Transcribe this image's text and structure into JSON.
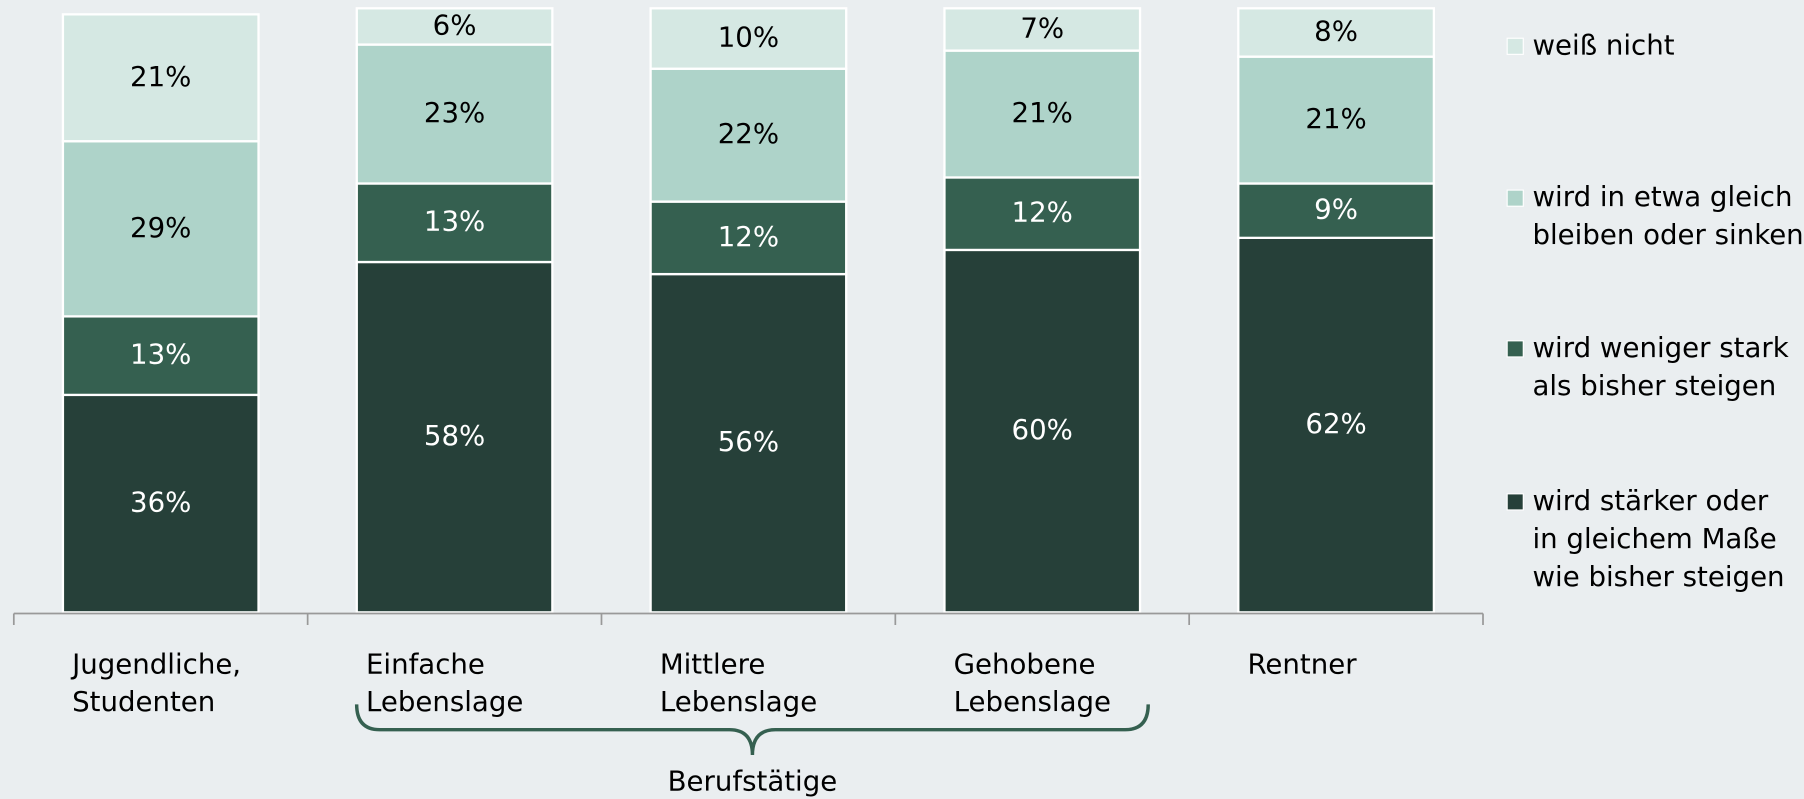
{
  "chart_data": {
    "type": "stacked_bar",
    "categories": [
      "Jugendliche, Studenten",
      "Einfache Lebenslage",
      "Mittlere Lebenslage",
      "Gehobene Lebenslage",
      "Rentner"
    ],
    "series": [
      {
        "name": "wird stärker oder in gleichem Maße wie bisher steigen",
        "color": "#264039",
        "label_color": "#ffffff",
        "values": [
          36,
          58,
          56,
          60,
          62
        ],
        "value_labels": [
          "36%",
          "58%",
          "56%",
          "60%",
          "62%"
        ]
      },
      {
        "name": "wird weniger stark als bisher steigen",
        "color": "#356050",
        "label_color": "#ffffff",
        "values": [
          13,
          13,
          12,
          12,
          9
        ],
        "value_labels": [
          "13%",
          "13%",
          "12%",
          "12%",
          "9%"
        ]
      },
      {
        "name": "wird in etwa gleich bleiben oder sinken",
        "color": "#aed3c9",
        "label_color": "#000000",
        "values": [
          29,
          23,
          22,
          21,
          21
        ],
        "value_labels": [
          "29%",
          "23%",
          "22%",
          "21%",
          "21%"
        ]
      },
      {
        "name": "weiß nicht",
        "color": "#d5e8e3",
        "label_color": "#000000",
        "values": [
          21,
          6,
          10,
          7,
          8
        ],
        "value_labels": [
          "21%",
          "6%",
          "10%",
          "7%",
          "8%"
        ]
      }
    ],
    "ylim": [
      0,
      100
    ],
    "annotations": [
      "Berufstätige"
    ],
    "legend": "right"
  }
}
